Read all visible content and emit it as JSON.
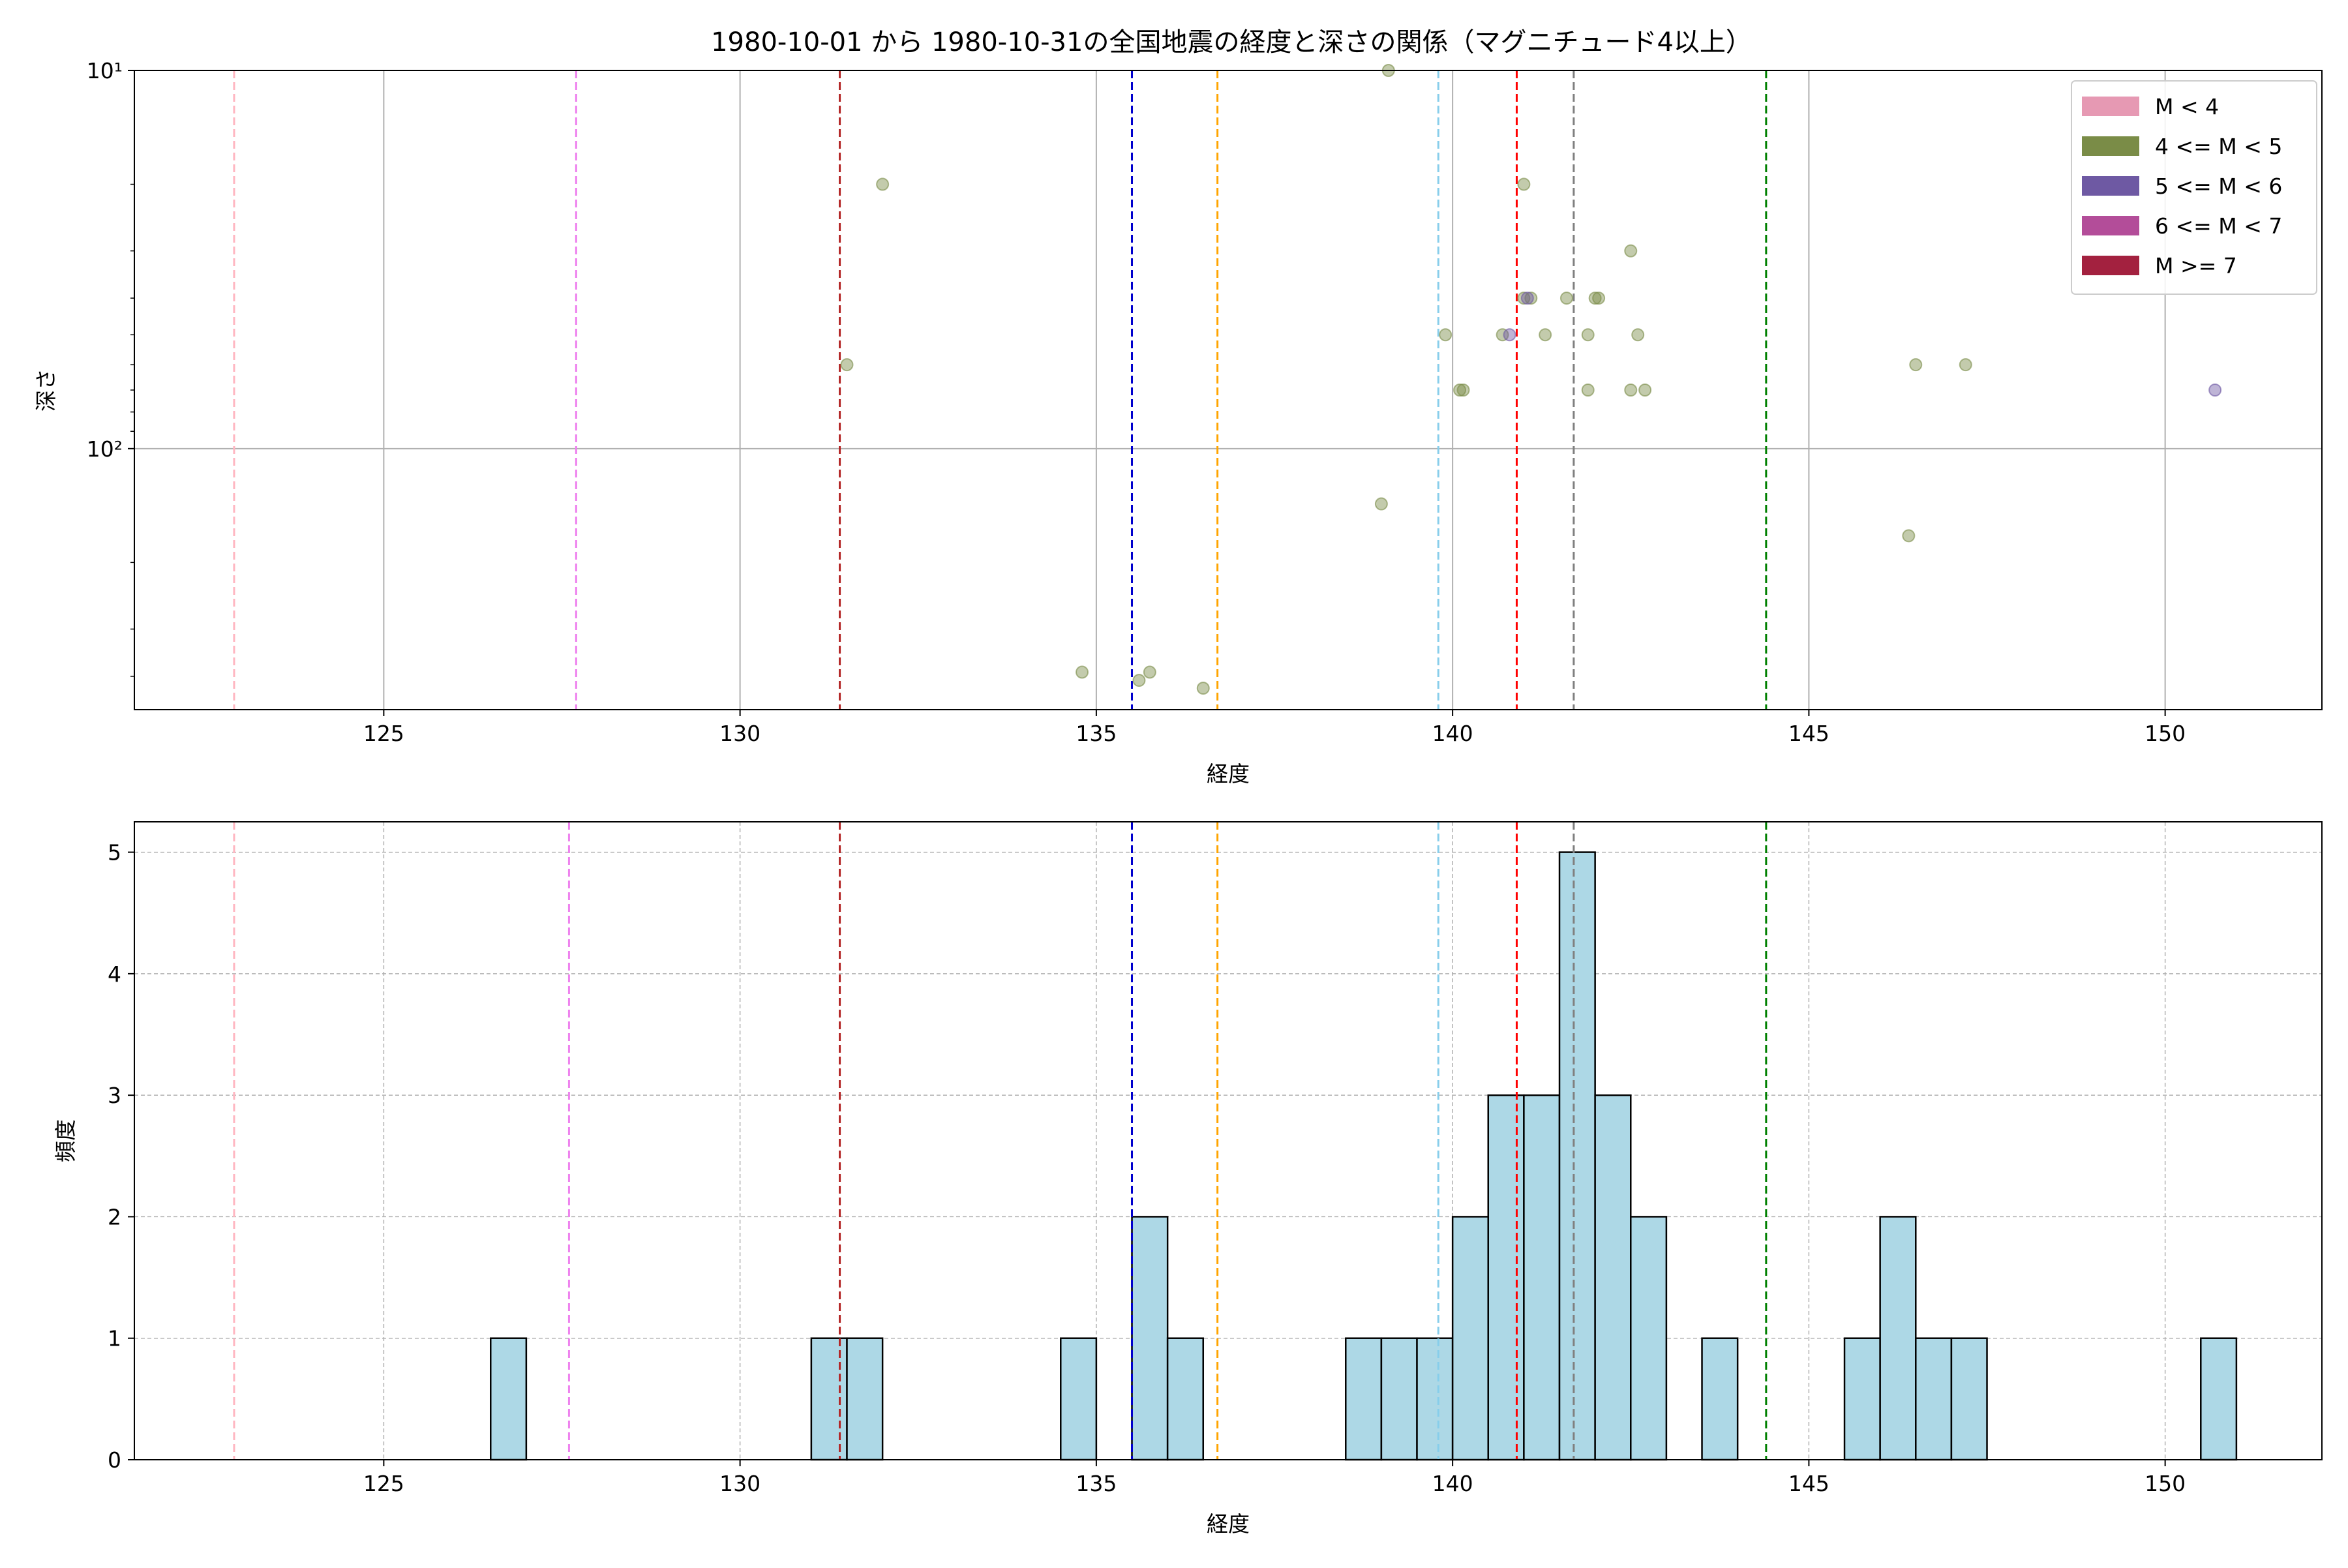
{
  "figure_title": "1980-10-01 から 1980-10-31の全国地震の経度と深さの関係（マグニチュード4以上）",
  "chart_data": [
    {
      "type": "scatter",
      "xlabel": "経度",
      "ylabel": "深さ",
      "xlim": [
        121.5,
        152.2
      ],
      "ylim": [
        10,
        490
      ],
      "y_scale": "log",
      "y_inverted": true,
      "grid": true,
      "x_ticks": [
        125,
        130,
        135,
        140,
        145,
        150
      ],
      "y_ticks": [
        {
          "value": 10,
          "label": "10¹"
        },
        {
          "value": 100,
          "label": "10²"
        }
      ],
      "legend_position": "top-right",
      "legend": [
        {
          "label": "M < 4",
          "color": "#e699b3"
        },
        {
          "label": "4 <= M < 5",
          "color": "#7a8c47"
        },
        {
          "label": "5 <= M < 6",
          "color": "#6e59a3"
        },
        {
          "label": "6 <= M < 7",
          "color": "#b34d99"
        },
        {
          "label": "M >= 7",
          "color": "#a3213f"
        }
      ],
      "vlines": [
        {
          "x": 122.9,
          "color": "#ffb6c1"
        },
        {
          "x": 127.7,
          "color": "#ee82ee"
        },
        {
          "x": 131.4,
          "color": "#b22222"
        },
        {
          "x": 135.5,
          "color": "#0000cd"
        },
        {
          "x": 136.7,
          "color": "#ffa500"
        },
        {
          "x": 139.8,
          "color": "#87ceeb"
        },
        {
          "x": 140.9,
          "color": "#ff0000"
        },
        {
          "x": 141.7,
          "color": "#808080"
        },
        {
          "x": 144.4,
          "color": "#008000"
        }
      ],
      "series": [
        {
          "color": "#7a8c47",
          "points": [
            [
              139.1,
              10
            ],
            [
              132.0,
              20
            ],
            [
              141.0,
              20
            ],
            [
              142.5,
              30
            ],
            [
              141.0,
              40
            ],
            [
              141.1,
              40
            ],
            [
              141.6,
              40
            ],
            [
              142.0,
              40
            ],
            [
              142.05,
              40
            ],
            [
              131.5,
              60
            ],
            [
              146.5,
              60
            ],
            [
              147.2,
              60
            ],
            [
              139.9,
              50
            ],
            [
              140.7,
              50
            ],
            [
              141.3,
              50
            ],
            [
              141.9,
              50
            ],
            [
              142.6,
              50
            ],
            [
              140.1,
              70
            ],
            [
              140.15,
              70
            ],
            [
              141.9,
              70
            ],
            [
              142.5,
              70
            ],
            [
              142.7,
              70
            ],
            [
              139.0,
              140
            ],
            [
              146.4,
              170
            ],
            [
              134.8,
              390
            ],
            [
              135.6,
              410
            ],
            [
              135.75,
              390
            ],
            [
              136.5,
              430
            ]
          ]
        },
        {
          "color": "#6e59a3",
          "points": [
            [
              140.8,
              50
            ],
            [
              141.05,
              40
            ],
            [
              150.7,
              70
            ]
          ]
        }
      ]
    },
    {
      "type": "bar",
      "subtype": "histogram",
      "xlabel": "経度",
      "ylabel": "頻度",
      "xlim": [
        121.5,
        152.2
      ],
      "ylim": [
        0,
        5.25
      ],
      "x_ticks": [
        125,
        130,
        135,
        140,
        145,
        150
      ],
      "y_ticks": [
        0,
        1,
        2,
        3,
        4,
        5
      ],
      "grid": true,
      "bar_color": "#add8e6",
      "bin_width": 0.5,
      "bins": [
        {
          "x": 126.5,
          "value": 1
        },
        {
          "x": 131.0,
          "value": 1
        },
        {
          "x": 131.5,
          "value": 1
        },
        {
          "x": 134.5,
          "value": 1
        },
        {
          "x": 135.5,
          "value": 2
        },
        {
          "x": 136.0,
          "value": 1
        },
        {
          "x": 138.5,
          "value": 1
        },
        {
          "x": 139.0,
          "value": 1
        },
        {
          "x": 139.5,
          "value": 1
        },
        {
          "x": 140.0,
          "value": 2
        },
        {
          "x": 140.5,
          "value": 3
        },
        {
          "x": 141.0,
          "value": 3
        },
        {
          "x": 141.5,
          "value": 5
        },
        {
          "x": 142.0,
          "value": 3
        },
        {
          "x": 142.5,
          "value": 2
        },
        {
          "x": 143.5,
          "value": 1
        },
        {
          "x": 145.5,
          "value": 1
        },
        {
          "x": 146.0,
          "value": 2
        },
        {
          "x": 146.5,
          "value": 1
        },
        {
          "x": 147.0,
          "value": 1
        },
        {
          "x": 150.5,
          "value": 1
        }
      ],
      "vlines": [
        {
          "x": 122.9,
          "color": "#ffb6c1"
        },
        {
          "x": 127.6,
          "color": "#ee82ee"
        },
        {
          "x": 131.4,
          "color": "#b22222"
        },
        {
          "x": 135.5,
          "color": "#0000cd"
        },
        {
          "x": 136.7,
          "color": "#ffa500"
        },
        {
          "x": 139.8,
          "color": "#87ceeb"
        },
        {
          "x": 140.9,
          "color": "#ff0000"
        },
        {
          "x": 141.7,
          "color": "#808080"
        },
        {
          "x": 144.4,
          "color": "#008000"
        }
      ]
    }
  ]
}
